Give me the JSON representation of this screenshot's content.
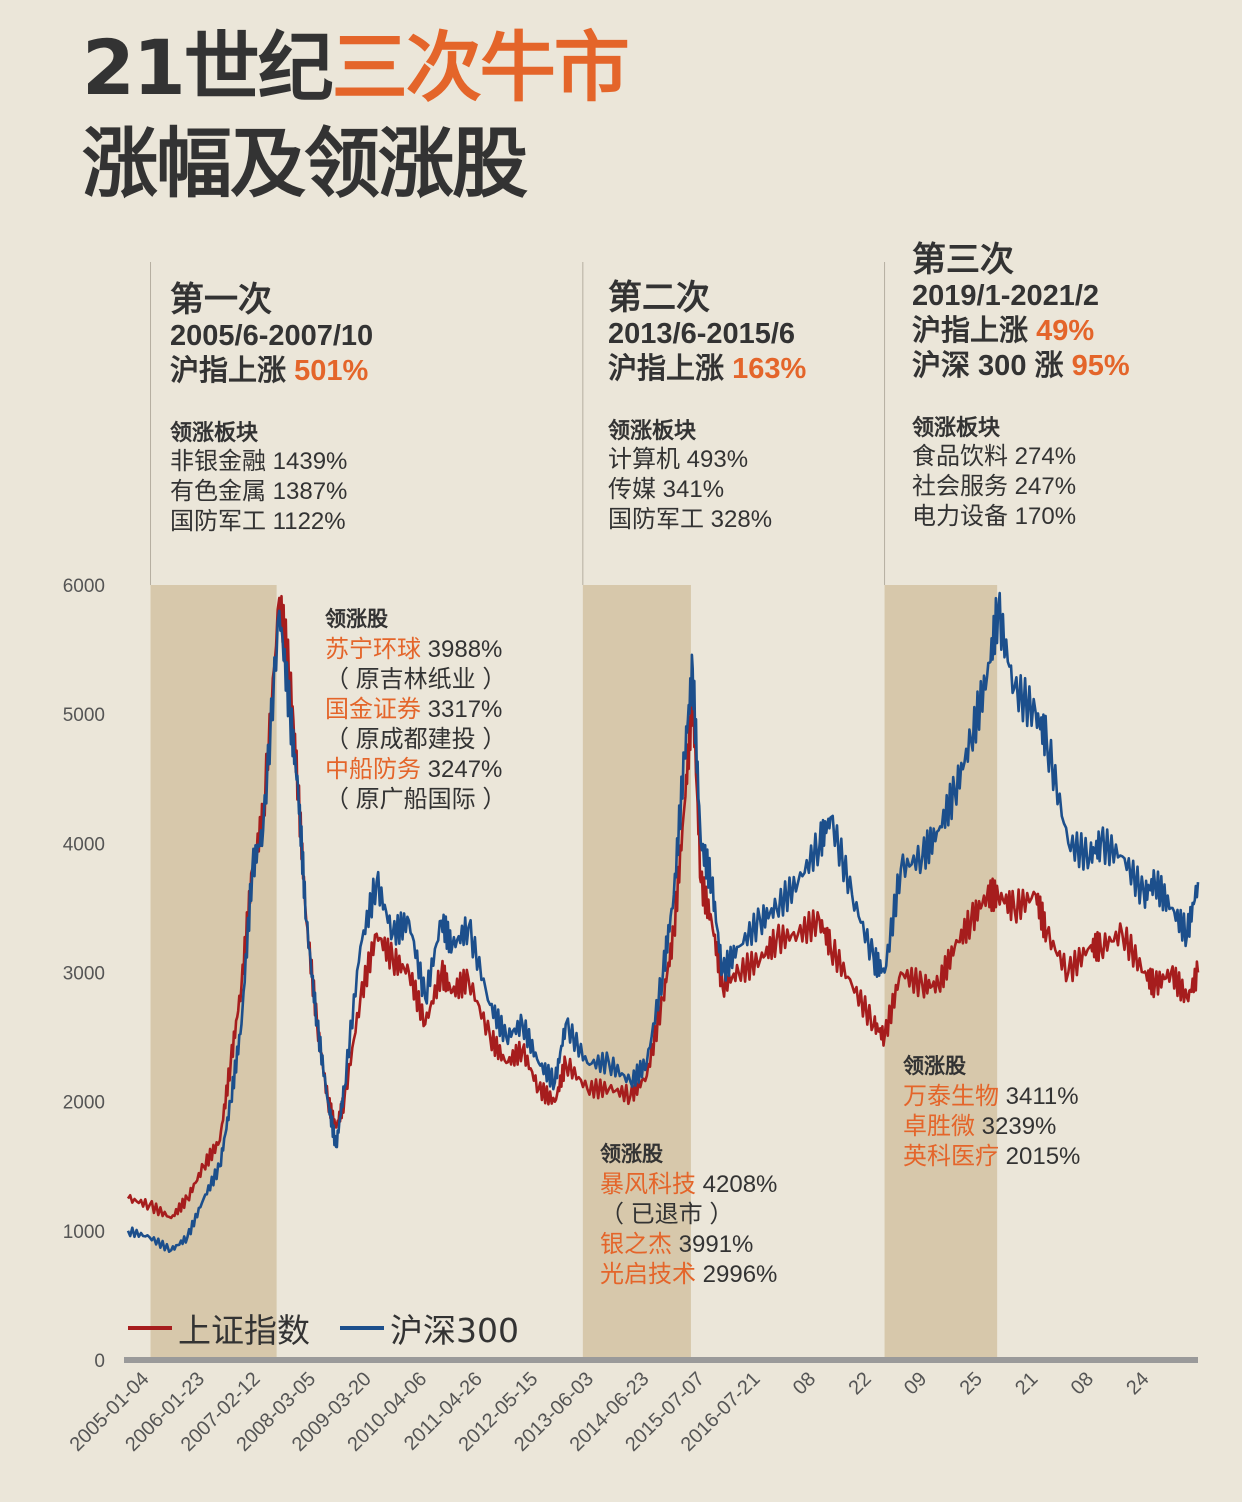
{
  "header": {
    "title_pre": "21世纪",
    "title_highlight": "三次牛市",
    "subtitle": "涨幅及领涨股"
  },
  "colors": {
    "accent": "#e4652a",
    "shade": "#d7c8ab",
    "shanghai": "#a61d1d",
    "hs300": "#1c4f8c",
    "axis": "#9a9a9a"
  },
  "phases": [
    {
      "name": "第一次",
      "period": "2005/6-2007/10",
      "gains": [
        {
          "label": "沪指上涨 ",
          "value": "501%"
        }
      ],
      "sector_header": "领涨板块",
      "sectors": [
        "非银金融 1439%",
        "有色金属 1387%",
        "国防军工 1122%"
      ],
      "leaders_header": "领涨股",
      "leaders": [
        {
          "name": "苏宁环球",
          "gain": " 3988%"
        },
        {
          "note": "（ 原吉林纸业 ）"
        },
        {
          "name": "国金证券",
          "gain": " 3317%"
        },
        {
          "note": "（ 原成都建投 ）"
        },
        {
          "name": "中船防务",
          "gain": " 3247%"
        },
        {
          "note": "（ 原广船国际 ）"
        }
      ]
    },
    {
      "name": "第二次",
      "period": "2013/6-2015/6",
      "gains": [
        {
          "label": "沪指上涨 ",
          "value": "163%"
        }
      ],
      "sector_header": "领涨板块",
      "sectors": [
        "计算机 493%",
        "传媒 341%",
        "国防军工 328%"
      ],
      "leaders_header": "领涨股",
      "leaders": [
        {
          "name": "暴风科技",
          "gain": " 4208%"
        },
        {
          "note": "（ 已退市 ）"
        },
        {
          "name": "银之杰",
          "gain": " 3991%"
        },
        {
          "name": "光启技术",
          "gain": " 2996%"
        }
      ]
    },
    {
      "name": "第三次",
      "period": "2019/1-2021/2",
      "gains": [
        {
          "label": "沪指上涨 ",
          "value": "49%"
        },
        {
          "label": "沪深 300 涨 ",
          "value": "95%"
        }
      ],
      "sector_header": "领涨板块",
      "sectors": [
        "食品饮料 274%",
        "社会服务 247%",
        "电力设备 170%"
      ],
      "leaders_header": "领涨股",
      "leaders": [
        {
          "name": "万泰生物",
          "gain": " 3411%"
        },
        {
          "name": "卓胜微",
          "gain": " 3239%"
        },
        {
          "name": "英科医疗",
          "gain": " 2015%"
        }
      ]
    }
  ],
  "chart_data": {
    "type": "line",
    "ylim": [
      0,
      6000
    ],
    "yticks": [
      0,
      1000,
      2000,
      3000,
      4000,
      5000,
      6000
    ],
    "x_tick_labels": [
      "2005-01-04",
      "2006-01-23",
      "2007-02-12",
      "2008-03-05",
      "2009-03-20",
      "2010-04-06",
      "2011-04-26",
      "2012-05-15",
      "2013-06-03",
      "2014-06-23",
      "2015-07-07",
      "2016-07-21",
      "08",
      "22",
      "09",
      "25",
      "21",
      "08",
      "24"
    ],
    "bull_periods": [
      {
        "start": "2005/6",
        "end": "2007/10"
      },
      {
        "start": "2013/6",
        "end": "2015/6"
      },
      {
        "start": "2019/1",
        "end": "2021/2"
      }
    ],
    "x": [
      2005.0,
      2005.4,
      2005.8,
      2006.1,
      2006.4,
      2006.7,
      2006.9,
      2007.1,
      2007.3,
      2007.5,
      2007.8,
      2008.0,
      2008.15,
      2008.3,
      2008.5,
      2008.7,
      2008.85,
      2009.0,
      2009.3,
      2009.6,
      2009.9,
      2010.2,
      2010.5,
      2010.8,
      2011.0,
      2011.3,
      2011.7,
      2012.0,
      2012.3,
      2012.6,
      2012.9,
      2013.1,
      2013.5,
      2013.9,
      2014.3,
      2014.6,
      2014.9,
      2015.1,
      2015.3,
      2015.45,
      2015.6,
      2015.8,
      2016.0,
      2016.3,
      2016.7,
      2017.0,
      2017.4,
      2017.8,
      2018.0,
      2018.4,
      2018.8,
      2019.0,
      2019.3,
      2019.7,
      2020.0,
      2020.3,
      2020.6,
      2020.9,
      2021.1,
      2021.4,
      2021.8,
      2022.0,
      2022.4,
      2022.8,
      2023.0,
      2023.4,
      2023.8,
      2024.0,
      2024.3,
      2024.6,
      2024.8
    ],
    "series": [
      {
        "name": "上证指数",
        "color": "#a61d1d",
        "values": [
          1250,
          1200,
          1100,
          1250,
          1500,
          1700,
          2300,
          2900,
          3800,
          4200,
          5900,
          5300,
          4400,
          3400,
          2600,
          2000,
          1800,
          2000,
          2800,
          3300,
          3100,
          3000,
          2600,
          3000,
          2850,
          2950,
          2500,
          2300,
          2400,
          2100,
          2000,
          2300,
          2100,
          2100,
          2050,
          2200,
          2800,
          3300,
          4300,
          5150,
          3700,
          3400,
          2900,
          3000,
          3100,
          3250,
          3300,
          3400,
          3200,
          2900,
          2600,
          2500,
          3000,
          2900,
          2900,
          3200,
          3400,
          3600,
          3600,
          3500,
          3600,
          3300,
          3000,
          3200,
          3200,
          3300,
          3000,
          2900,
          3000,
          2800,
          3000
        ]
      },
      {
        "name": "沪深300",
        "color": "#1c4f8c",
        "values": [
          1000,
          950,
          850,
          950,
          1250,
          1500,
          2000,
          2600,
          3800,
          4100,
          5800,
          5000,
          4400,
          3400,
          2600,
          2000,
          1650,
          2100,
          3200,
          3700,
          3300,
          3400,
          2800,
          3400,
          3200,
          3350,
          2750,
          2500,
          2600,
          2300,
          2150,
          2600,
          2300,
          2300,
          2150,
          2300,
          3000,
          3600,
          4700,
          5350,
          4000,
          3700,
          3000,
          3200,
          3400,
          3500,
          3700,
          4000,
          4200,
          3600,
          3100,
          3000,
          3800,
          3900,
          4100,
          4400,
          4800,
          5300,
          5800,
          5200,
          5000,
          4800,
          4000,
          3900,
          4000,
          3900,
          3600,
          3700,
          3500,
          3300,
          3700
        ]
      }
    ]
  }
}
